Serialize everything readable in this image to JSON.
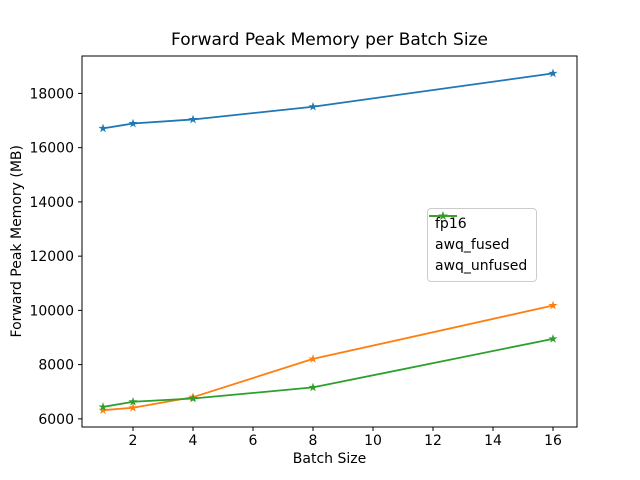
{
  "chart_data": {
    "type": "line",
    "title": "Forward Peak Memory per Batch Size",
    "xlabel": "Batch Size",
    "ylabel": "Forward Peak Memory (MB)",
    "x": [
      1,
      2,
      4,
      8,
      16
    ],
    "series": [
      {
        "name": "fp16",
        "color": "#1f77b4",
        "values": [
          16710,
          16890,
          17040,
          17510,
          18740
        ]
      },
      {
        "name": "awq_fused",
        "color": "#ff7f0e",
        "values": [
          6320,
          6410,
          6800,
          8210,
          10180
        ]
      },
      {
        "name": "awq_unfused",
        "color": "#2ca02c",
        "values": [
          6440,
          6630,
          6750,
          7160,
          8950
        ]
      }
    ],
    "marker": "star",
    "xticks": [
      2,
      4,
      6,
      8,
      10,
      12,
      14,
      16
    ],
    "yticks": [
      6000,
      8000,
      10000,
      12000,
      14000,
      16000,
      18000
    ],
    "xlim": [
      0.3,
      16.8
    ],
    "ylim": [
      5700,
      19380
    ],
    "grid": false,
    "legend_position": "center right",
    "background": "#ffffff",
    "axis_color": "#000000"
  }
}
